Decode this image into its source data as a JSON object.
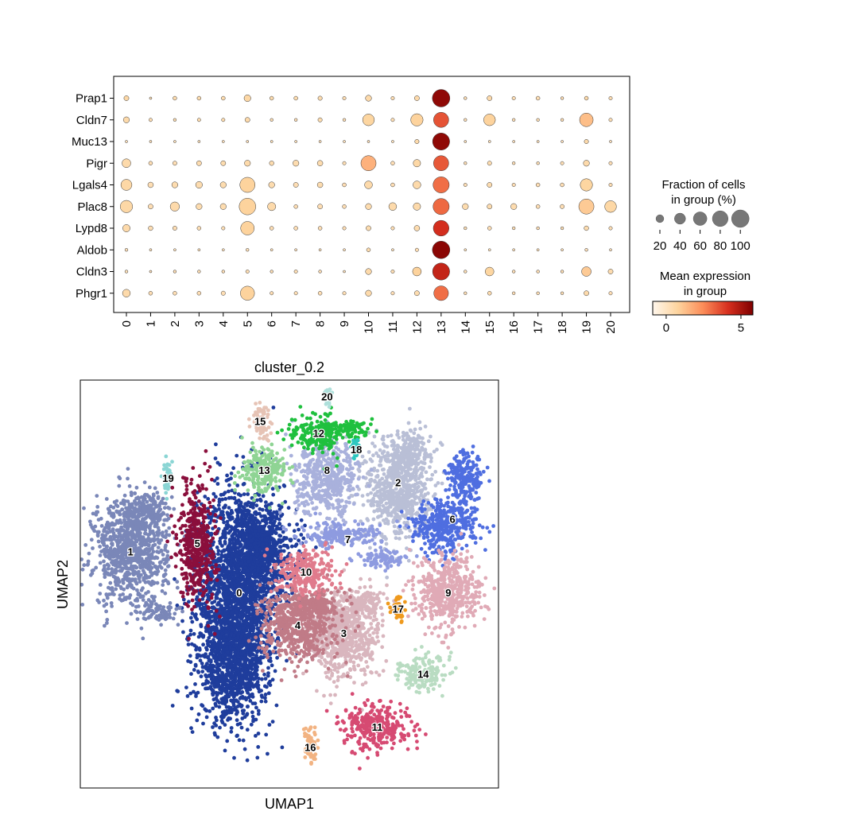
{
  "chart_data": [
    {
      "type": "dotplot",
      "xlabel": "",
      "ylabel": "",
      "genes": [
        "Prap1",
        "Cldn7",
        "Muc13",
        "Pigr",
        "Lgals4",
        "Plac8",
        "Lypd8",
        "Aldob",
        "Cldn3",
        "Phgr1"
      ],
      "clusters": [
        "0",
        "1",
        "2",
        "3",
        "4",
        "5",
        "6",
        "7",
        "8",
        "9",
        "10",
        "11",
        "12",
        "13",
        "14",
        "15",
        "16",
        "17",
        "18",
        "19",
        "20"
      ],
      "fraction": [
        [
          8,
          2,
          5,
          5,
          5,
          15,
          5,
          5,
          6,
          4,
          12,
          4,
          8,
          100,
          3,
          8,
          4,
          5,
          3,
          5,
          4
        ],
        [
          12,
          4,
          3,
          4,
          4,
          8,
          3,
          3,
          6,
          3,
          45,
          4,
          50,
          75,
          3,
          45,
          3,
          3,
          3,
          60,
          4
        ],
        [
          2,
          2,
          2,
          2,
          2,
          2,
          2,
          2,
          2,
          2,
          2,
          2,
          6,
          95,
          2,
          2,
          2,
          2,
          2,
          6,
          2
        ],
        [
          25,
          5,
          6,
          8,
          8,
          12,
          7,
          12,
          10,
          4,
          75,
          5,
          18,
          75,
          3,
          6,
          3,
          3,
          4,
          12,
          4
        ],
        [
          40,
          10,
          12,
          15,
          12,
          75,
          12,
          8,
          10,
          5,
          20,
          5,
          20,
          85,
          4,
          8,
          4,
          5,
          5,
          50,
          4
        ],
        [
          50,
          8,
          28,
          12,
          12,
          90,
          22,
          5,
          8,
          5,
          12,
          20,
          18,
          85,
          12,
          8,
          12,
          5,
          6,
          75,
          45
        ],
        [
          18,
          7,
          6,
          5,
          4,
          60,
          5,
          5,
          5,
          4,
          8,
          4,
          10,
          80,
          3,
          5,
          3,
          3,
          3,
          7,
          4
        ],
        [
          3,
          2,
          2,
          2,
          2,
          3,
          2,
          2,
          2,
          2,
          5,
          2,
          4,
          100,
          2,
          2,
          2,
          2,
          2,
          3,
          2
        ],
        [
          3,
          2,
          3,
          3,
          3,
          4,
          3,
          4,
          3,
          2,
          12,
          4,
          25,
          95,
          3,
          25,
          3,
          3,
          3,
          30,
          8
        ],
        [
          20,
          5,
          5,
          5,
          6,
          65,
          4,
          4,
          5,
          4,
          12,
          4,
          8,
          70,
          3,
          5,
          3,
          3,
          3,
          8,
          4
        ]
      ],
      "expression": [
        [
          0.6,
          0.3,
          0.4,
          0.4,
          0.4,
          0.6,
          0.4,
          0.4,
          0.4,
          0.3,
          0.5,
          0.3,
          0.5,
          5.5,
          0.3,
          0.5,
          0.3,
          0.3,
          0.3,
          0.5,
          0.3
        ],
        [
          0.5,
          0.3,
          0.4,
          0.4,
          0.4,
          0.5,
          0.3,
          0.3,
          0.4,
          0.3,
          0.7,
          0.3,
          0.8,
          3.5,
          0.3,
          0.8,
          0.3,
          0.3,
          0.3,
          1.3,
          0.3
        ],
        [
          0.2,
          0.2,
          0.2,
          0.2,
          0.2,
          0.2,
          0.2,
          0.2,
          0.2,
          0.2,
          0.2,
          0.2,
          0.5,
          5.5,
          0.2,
          0.2,
          0.2,
          0.2,
          0.2,
          0.5,
          0.2
        ],
        [
          0.5,
          0.3,
          0.3,
          0.4,
          0.4,
          0.5,
          0.4,
          0.4,
          0.4,
          0.3,
          1.6,
          0.3,
          0.6,
          3.4,
          0.3,
          0.4,
          0.3,
          0.3,
          0.3,
          0.5,
          0.3
        ],
        [
          0.6,
          0.3,
          0.4,
          0.4,
          0.4,
          0.8,
          0.4,
          0.3,
          0.4,
          0.3,
          0.5,
          0.3,
          0.5,
          3.0,
          0.3,
          0.4,
          0.3,
          0.3,
          0.3,
          0.7,
          0.3
        ],
        [
          0.6,
          0.3,
          0.5,
          0.4,
          0.4,
          0.8,
          0.5,
          0.3,
          0.3,
          0.3,
          0.4,
          0.5,
          0.5,
          3.1,
          0.4,
          0.4,
          0.4,
          0.3,
          0.3,
          1.0,
          0.6
        ],
        [
          0.5,
          0.3,
          0.3,
          0.3,
          0.3,
          0.8,
          0.3,
          0.3,
          0.3,
          0.3,
          0.4,
          0.3,
          0.4,
          4.2,
          0.3,
          0.3,
          0.3,
          0.3,
          0.3,
          0.4,
          0.3
        ],
        [
          0.2,
          0.2,
          0.2,
          0.2,
          0.2,
          0.2,
          0.2,
          0.2,
          0.2,
          0.2,
          0.4,
          0.2,
          0.3,
          5.6,
          0.2,
          0.2,
          0.2,
          0.2,
          0.2,
          0.2,
          0.2
        ],
        [
          0.2,
          0.2,
          0.3,
          0.3,
          0.3,
          0.3,
          0.3,
          0.3,
          0.3,
          0.2,
          0.5,
          0.3,
          0.8,
          4.5,
          0.3,
          0.7,
          0.3,
          0.3,
          0.3,
          1.0,
          0.4
        ],
        [
          0.5,
          0.3,
          0.3,
          0.3,
          0.3,
          0.8,
          0.3,
          0.3,
          0.3,
          0.3,
          0.5,
          0.3,
          0.4,
          3.0,
          0.3,
          0.4,
          0.3,
          0.3,
          0.3,
          0.5,
          0.3
        ]
      ],
      "size_legend": {
        "title_line1": "Fraction of cells",
        "title_line2": "in group (%)",
        "values": [
          20,
          40,
          60,
          80,
          100
        ],
        "labels": [
          "20",
          "40",
          "60",
          "80",
          "100"
        ]
      },
      "color_legend": {
        "title_line1": "Mean expression",
        "title_line2": "in group",
        "range": [
          -0.9,
          5.8
        ],
        "ticks": [
          0,
          5
        ],
        "tick_labels": [
          "0",
          "5"
        ],
        "colormap": "OrRd",
        "stops": [
          "#fff7ec",
          "#fdd49e",
          "#fc8d59",
          "#d7301f",
          "#7f0000"
        ]
      }
    },
    {
      "type": "scatter",
      "title": "cluster_0.2",
      "xlabel": "UMAP1",
      "ylabel": "UMAP2",
      "xlim": [
        0,
        100
      ],
      "ylim": [
        0,
        100
      ],
      "clusters": [
        {
          "label": "0",
          "color": "#1f3d9c",
          "center": [
            38,
            48
          ],
          "blobs": [
            [
              38,
              48,
              9,
              24
            ],
            [
              43,
              58,
              8,
              10
            ],
            [
              36,
              30,
              7,
              12
            ]
          ]
        },
        {
          "label": "1",
          "color": "#7a87b8",
          "center": [
            12,
            58
          ],
          "blobs": [
            [
              12,
              58,
              8,
              12
            ],
            [
              16,
              68,
              5,
              4
            ],
            [
              19,
              43,
              4,
              2
            ]
          ]
        },
        {
          "label": "2",
          "color": "#b9bfd6",
          "center": [
            76,
            75
          ],
          "blobs": [
            [
              76,
              73,
              7,
              11
            ],
            [
              78,
              83,
              5,
              4
            ]
          ]
        },
        {
          "label": "3",
          "color": "#d9b6be",
          "center": [
            63,
            38
          ],
          "blobs": [
            [
              63,
              38,
              8,
              10
            ],
            [
              68,
              45,
              4,
              3
            ]
          ]
        },
        {
          "label": "4",
          "color": "#c07b87",
          "center": [
            52,
            40
          ],
          "blobs": [
            [
              52,
              40,
              8,
              8
            ],
            [
              56,
              45,
              5,
              3
            ]
          ]
        },
        {
          "label": "5",
          "color": "#8a0f3c",
          "center": [
            28,
            60
          ],
          "blobs": [
            [
              28,
              60,
              4,
              13
            ]
          ]
        },
        {
          "label": "6",
          "color": "#4f6ee0",
          "center": [
            89,
            66
          ],
          "blobs": [
            [
              92,
              76,
              4,
              6
            ],
            [
              87,
              64,
              7,
              6
            ]
          ]
        },
        {
          "label": "7",
          "color": "#8e9be0",
          "center": [
            64,
            61
          ],
          "blobs": [
            [
              62,
              62,
              9,
              2.5
            ],
            [
              72,
              56,
              5,
              2
            ]
          ]
        },
        {
          "label": "8",
          "color": "#a9b1dc",
          "center": [
            59,
            78
          ],
          "blobs": [
            [
              59,
              76,
              7,
              8
            ]
          ]
        },
        {
          "label": "9",
          "color": "#e0aab6",
          "center": [
            88,
            48
          ],
          "blobs": [
            [
              88,
              48,
              7,
              8
            ]
          ]
        },
        {
          "label": "10",
          "color": "#e07b8c",
          "center": [
            54,
            53
          ],
          "blobs": [
            [
              54,
              53,
              6,
              5
            ]
          ]
        },
        {
          "label": "11",
          "color": "#d64a72",
          "center": [
            71,
            15
          ],
          "blobs": [
            [
              71,
              15,
              7,
              5
            ]
          ]
        },
        {
          "label": "12",
          "color": "#1fc03e",
          "center": [
            57,
            87
          ],
          "blobs": [
            [
              57,
              87,
              6,
              4
            ],
            [
              65,
              88,
              4,
              2
            ]
          ]
        },
        {
          "label": "13",
          "color": "#8fd494",
          "center": [
            44,
            78
          ],
          "blobs": [
            [
              44,
              78,
              5,
              5
            ]
          ]
        },
        {
          "label": "14",
          "color": "#b9dcc2",
          "center": [
            82,
            28
          ],
          "blobs": [
            [
              82,
              28,
              5,
              4
            ]
          ]
        },
        {
          "label": "15",
          "color": "#e6c3b5",
          "center": [
            43,
            90
          ],
          "blobs": [
            [
              43,
              90,
              2,
              4
            ]
          ]
        },
        {
          "label": "16",
          "color": "#f2b382",
          "center": [
            55,
            10
          ],
          "blobs": [
            [
              55,
              10,
              1.5,
              4
            ]
          ]
        },
        {
          "label": "17",
          "color": "#ef9a1e",
          "center": [
            76,
            44
          ],
          "blobs": [
            [
              76,
              44,
              1.5,
              3
            ]
          ]
        },
        {
          "label": "18",
          "color": "#2ec7c0",
          "center": [
            66,
            83
          ],
          "blobs": [
            [
              66,
              83,
              1,
              2.5
            ]
          ]
        },
        {
          "label": "19",
          "color": "#8ad5d4",
          "center": [
            21,
            76
          ],
          "blobs": [
            [
              21,
              76,
              1.2,
              3.5
            ]
          ]
        },
        {
          "label": "20",
          "color": "#aee0db",
          "center": [
            59,
            96
          ],
          "blobs": [
            [
              59,
              96,
              0.8,
              1.5
            ]
          ]
        }
      ]
    }
  ]
}
